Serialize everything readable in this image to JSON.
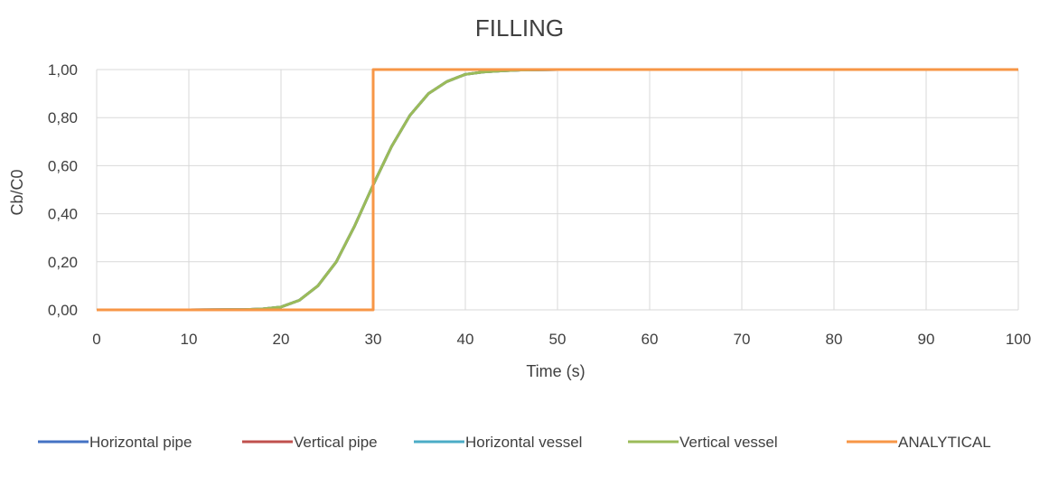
{
  "chart_data": {
    "type": "line",
    "title": "FILLING",
    "xlabel": "Time (s)",
    "ylabel": "Cb/C0",
    "xlim": [
      0,
      100
    ],
    "ylim": [
      0,
      1
    ],
    "xticks": [
      0,
      10,
      20,
      30,
      40,
      50,
      60,
      70,
      80,
      90,
      100
    ],
    "xtick_labels": [
      "0",
      "10",
      "20",
      "30",
      "40",
      "50",
      "60",
      "70",
      "80",
      "90",
      "100"
    ],
    "yticks": [
      0,
      0.2,
      0.4,
      0.6,
      0.8,
      1.0
    ],
    "ytick_labels": [
      "0,00",
      "0,20",
      "0,40",
      "0,60",
      "0,80",
      "1,00"
    ],
    "grid": true,
    "legend_position": "bottom",
    "series": [
      {
        "name": "Horizontal pipe",
        "color": "#4472C4",
        "x": [
          0,
          10,
          16,
          18,
          20,
          22,
          24,
          26,
          28,
          30,
          32,
          34,
          36,
          38,
          40,
          42,
          44,
          46,
          50,
          60,
          70,
          80,
          90,
          100
        ],
        "y": [
          0,
          0,
          0.001,
          0.004,
          0.012,
          0.04,
          0.1,
          0.2,
          0.35,
          0.52,
          0.68,
          0.81,
          0.9,
          0.95,
          0.98,
          0.99,
          0.995,
          0.998,
          1,
          1,
          1,
          1,
          1,
          1
        ]
      },
      {
        "name": "Vertical pipe",
        "color": "#C0504D",
        "x": [
          0,
          10,
          16,
          18,
          20,
          22,
          24,
          26,
          28,
          30,
          32,
          34,
          36,
          38,
          40,
          42,
          44,
          46,
          50,
          60,
          70,
          80,
          90,
          100
        ],
        "y": [
          0,
          0,
          0.001,
          0.004,
          0.012,
          0.04,
          0.1,
          0.2,
          0.35,
          0.52,
          0.68,
          0.81,
          0.9,
          0.95,
          0.98,
          0.99,
          0.995,
          0.998,
          1,
          1,
          1,
          1,
          1,
          1
        ]
      },
      {
        "name": "Horizontal vessel",
        "color": "#4BACC6",
        "x": [
          0,
          10,
          16,
          18,
          20,
          22,
          24,
          26,
          28,
          30,
          32,
          34,
          36,
          38,
          40,
          42,
          44,
          46,
          50,
          60,
          70,
          80,
          90,
          100
        ],
        "y": [
          0,
          0,
          0.001,
          0.004,
          0.012,
          0.04,
          0.1,
          0.2,
          0.35,
          0.52,
          0.68,
          0.81,
          0.9,
          0.95,
          0.98,
          0.99,
          0.995,
          0.998,
          1,
          1,
          1,
          1,
          1,
          1
        ]
      },
      {
        "name": "Vertical vessel",
        "color": "#9BBB59",
        "x": [
          0,
          10,
          16,
          18,
          20,
          22,
          24,
          26,
          28,
          30,
          32,
          34,
          36,
          38,
          40,
          42,
          44,
          46,
          50,
          60,
          70,
          80,
          90,
          100
        ],
        "y": [
          0,
          0,
          0.001,
          0.004,
          0.012,
          0.04,
          0.1,
          0.2,
          0.35,
          0.52,
          0.68,
          0.81,
          0.9,
          0.95,
          0.98,
          0.99,
          0.995,
          0.998,
          1,
          1,
          1,
          1,
          1,
          1
        ]
      },
      {
        "name": "ANALYTICAL",
        "color": "#F79646",
        "x": [
          0,
          30,
          30,
          100
        ],
        "y": [
          0,
          0,
          1,
          1
        ]
      }
    ]
  }
}
